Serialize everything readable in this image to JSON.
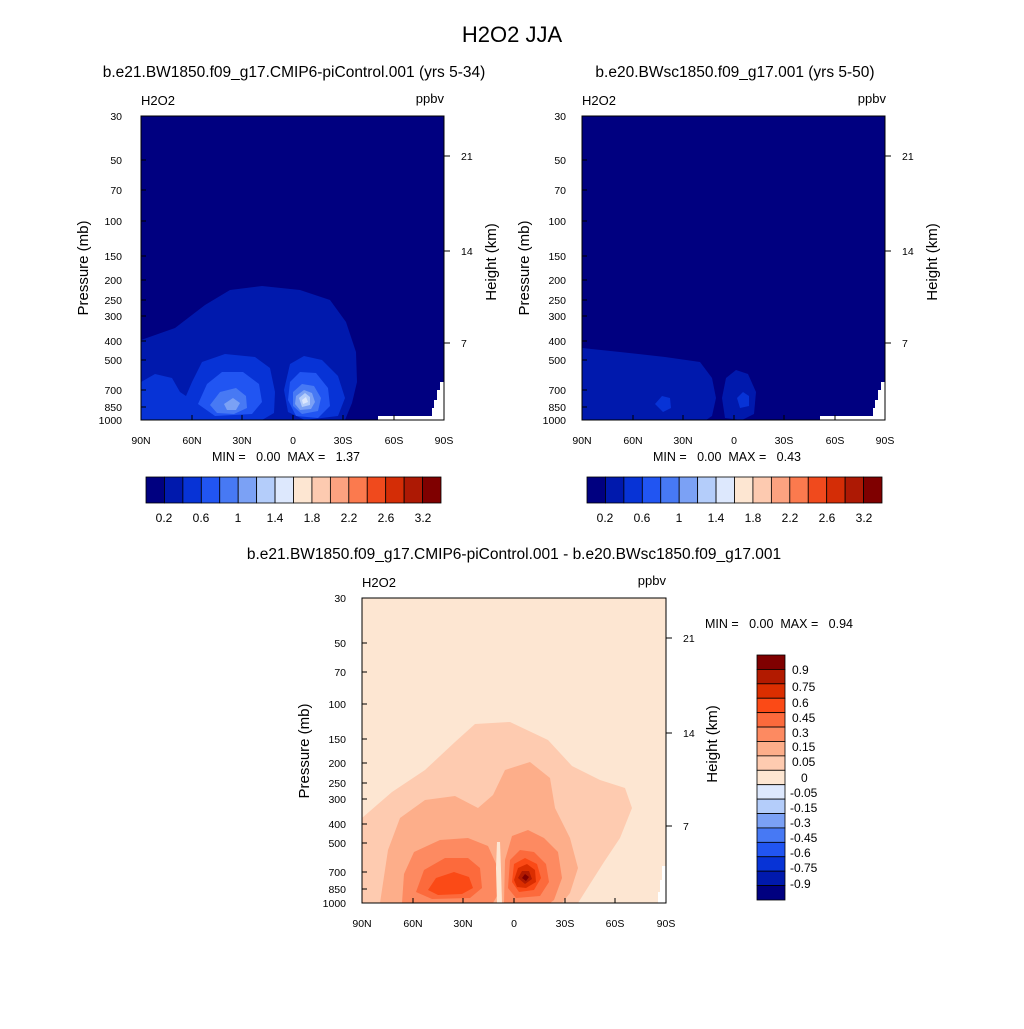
{
  "figure": {
    "title": "H2O2 JJA"
  },
  "panels": [
    {
      "id": "top-left",
      "title": "b.e21.BW1850.f09_g17.CMIP6-piControl.001 (yrs 5-34)",
      "var_label": "H2O2",
      "units": "ppbv",
      "stats": "MIN =   0.00  MAX =   1.37",
      "ylabel": "Pressure (mb)",
      "ylabel_right": "Height (km)"
    },
    {
      "id": "top-right",
      "title": "b.e20.BWsc1850.f09_g17.001 (yrs 5-50)",
      "var_label": "H2O2",
      "units": "ppbv",
      "stats": "MIN =   0.00  MAX =   0.43",
      "ylabel": "Pressure (mb)",
      "ylabel_right": "Height (km)"
    },
    {
      "id": "bottom-diff",
      "title": "b.e21.BW1850.f09_g17.CMIP6-piControl.001 - b.e20.BWsc1850.f09_g17.001",
      "var_label": "H2O2",
      "units": "ppbv",
      "stats": "MIN =   0.00  MAX =   0.94",
      "ylabel": "Pressure (mb)",
      "ylabel_right": "Height (km)"
    }
  ],
  "axes": {
    "x_ticks": [
      "90N",
      "60N",
      "30N",
      "0",
      "30S",
      "60S",
      "90S"
    ],
    "y_ticks": [
      "30",
      "50",
      "70",
      "100",
      "150",
      "200",
      "250",
      "300",
      "400",
      "500",
      "700",
      "850",
      "1000"
    ],
    "y_ticks_right": [
      "21",
      "14",
      "7"
    ]
  },
  "colorbars": {
    "abs_labels": [
      "0.2",
      "0.6",
      "1",
      "1.4",
      "1.8",
      "2.2",
      "2.6",
      "3.2"
    ],
    "abs_colors": [
      "#000080",
      "#0019ad",
      "#0733d6",
      "#2155f2",
      "#4779f4",
      "#7ba1f5",
      "#b4cdfa",
      "#dde8fd",
      "#fde6d2",
      "#fdcab0",
      "#fca280",
      "#fb7a4e",
      "#f04a1d",
      "#d42d06",
      "#ad1904",
      "#7f0000"
    ],
    "diff_labels": [
      "0.9",
      "0.75",
      "0.6",
      "0.45",
      "0.3",
      "0.15",
      "0.05",
      "0",
      "-0.05",
      "-0.15",
      "-0.3",
      "-0.45",
      "-0.6",
      "-0.75",
      "-0.9"
    ],
    "diff_colors": [
      "#7f0000",
      "#b21a00",
      "#db2e00",
      "#fb4a16",
      "#fc6a3c",
      "#fd8a61",
      "#fdae8a",
      "#fecbb0",
      "#fde6d2",
      "#dde8fd",
      "#b4cdfa",
      "#7ba1f5",
      "#4779f4",
      "#2155f2",
      "#0733d6",
      "#0019ad",
      "#000080"
    ]
  },
  "chart_data": [
    {
      "type": "heatmap",
      "title": "b.e21.BW1850.f09_g17.CMIP6-piControl.001 (yrs 5-34)",
      "x": [
        "90N",
        "60N",
        "30N",
        "0",
        "30S",
        "60S",
        "90S"
      ],
      "y": [
        1000,
        850,
        700,
        500,
        400,
        300,
        250,
        200,
        150,
        100,
        70,
        50,
        30
      ],
      "ylabel": "Pressure (mb)",
      "ylabel_right": "Height (km)",
      "min": 0.0,
      "max": 1.37,
      "units": "ppbv"
    },
    {
      "type": "heatmap",
      "title": "b.e20.BWsc1850.f09_g17.001 (yrs 5-50)",
      "x": [
        "90N",
        "60N",
        "30N",
        "0",
        "30S",
        "60S",
        "90S"
      ],
      "y": [
        1000,
        850,
        700,
        500,
        400,
        300,
        250,
        200,
        150,
        100,
        70,
        50,
        30
      ],
      "ylabel": "Pressure (mb)",
      "ylabel_right": "Height (km)",
      "min": 0.0,
      "max": 0.43,
      "units": "ppbv"
    },
    {
      "type": "heatmap",
      "title": "b.e21.BW1850.f09_g17.CMIP6-piControl.001 - b.e20.BWsc1850.f09_g17.001",
      "x": [
        "90N",
        "60N",
        "30N",
        "0",
        "30S",
        "60S",
        "90S"
      ],
      "y": [
        1000,
        850,
        700,
        500,
        400,
        300,
        250,
        200,
        150,
        100,
        70,
        50,
        30
      ],
      "ylabel": "Pressure (mb)",
      "ylabel_right": "Height (km)",
      "min": 0.0,
      "max": 0.94,
      "units": "ppbv"
    }
  ]
}
